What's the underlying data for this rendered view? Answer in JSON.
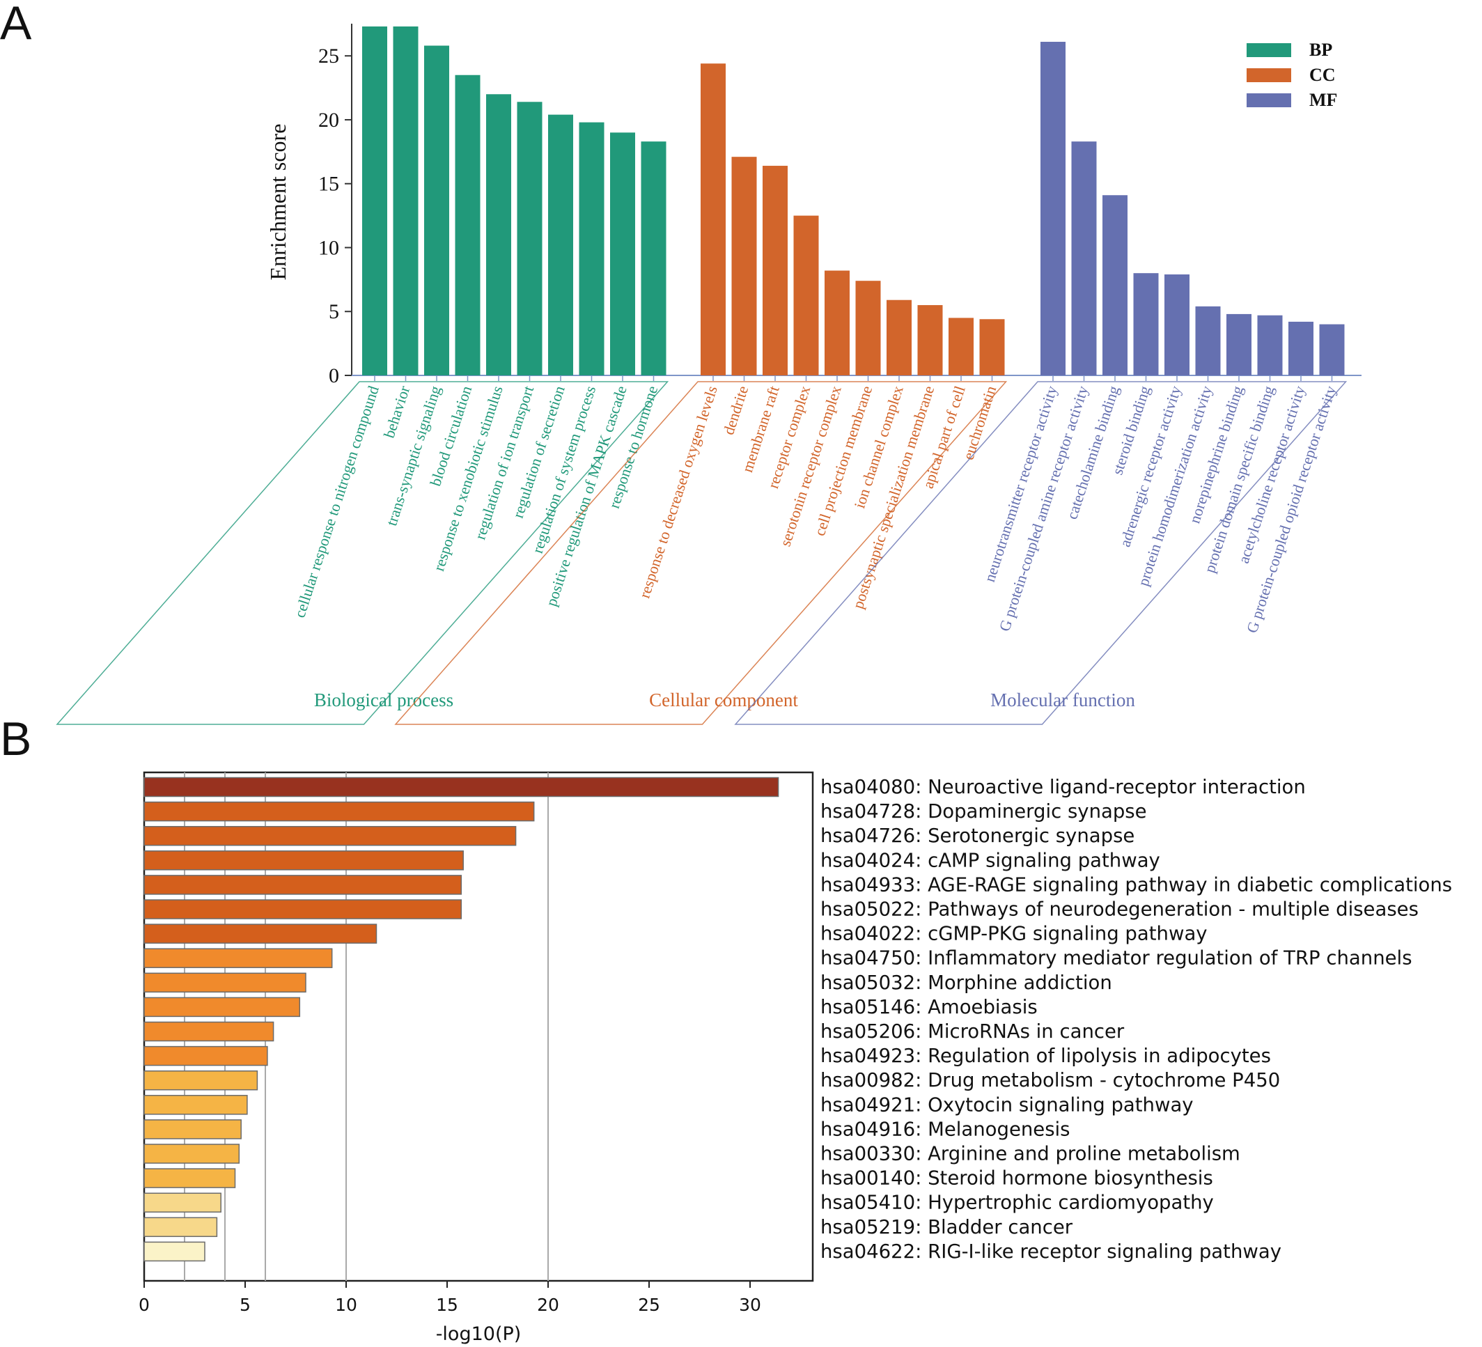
{
  "panel_a_label": "A",
  "panel_b_label": "B",
  "chart_data": [
    {
      "type": "bar",
      "ylabel": "Enrichment score",
      "ylim": [
        0,
        27.3
      ],
      "yticks": [
        0,
        5,
        10,
        15,
        20,
        25
      ],
      "legend_position": "top-right",
      "groups": [
        {
          "name": "BP",
          "title": "Biological process",
          "color": "#21997a",
          "categories": [
            "cellular response to nitrogen compound",
            "behavior",
            "trans-synaptic signaling",
            "blood circulation",
            "response to xenobiotic stimulus",
            "regulation of ion transport",
            "regulation of secretion",
            "regulation of system process",
            "positive regulation of MAPK cascade",
            "response to hormone"
          ],
          "values": [
            27.3,
            27.3,
            25.8,
            23.5,
            22.0,
            21.4,
            20.4,
            19.8,
            19.0,
            18.3
          ]
        },
        {
          "name": "CC",
          "title": "Cellular component",
          "color": "#d2652b",
          "categories": [
            "response to decreased oxygen levels",
            "dendrite",
            "membrane raft",
            "receptor complex",
            "serotonin receptor complex",
            "cell projection membrane",
            "ion channel complex",
            "postsynaptic specialization membrane",
            "apical part of cell",
            "euchromatin"
          ],
          "values": [
            24.4,
            17.1,
            16.4,
            12.5,
            8.2,
            7.4,
            5.9,
            5.5,
            4.5,
            4.4
          ]
        },
        {
          "name": "MF",
          "title": "Molecular function",
          "color": "#6570b0",
          "categories": [
            "neurotransmitter receptor activity",
            "G protein-coupled amine receptor activity",
            "catecholamine binding",
            "steroid binding",
            "adrenergic receptor activity",
            "protein homodimerization activity",
            "norepinephrine binding",
            "protein domain specific binding",
            "acetylcholine receptor activity",
            "G protein-coupled opioid receptor activity"
          ],
          "values": [
            26.1,
            18.3,
            14.1,
            8.0,
            7.9,
            5.4,
            4.8,
            4.7,
            4.2,
            4.0
          ]
        }
      ]
    },
    {
      "type": "bar",
      "orientation": "horizontal",
      "xlabel": "-log10(P)",
      "xlim": [
        0,
        33
      ],
      "xticks": [
        0,
        5,
        10,
        15,
        20,
        25,
        30
      ],
      "gridlines": [
        2,
        4,
        6,
        10,
        20
      ],
      "categories": [
        "hsa04080: Neuroactive ligand-receptor interaction",
        "hsa04728: Dopaminergic synapse",
        "hsa04726: Serotonergic synapse",
        "hsa04024: cAMP signaling pathway",
        "hsa04933: AGE-RAGE signaling pathway in diabetic complications",
        "hsa05022: Pathways of neurodegeneration - multiple diseases",
        "hsa04022: cGMP-PKG signaling pathway",
        "hsa04750: Inflammatory mediator regulation of TRP channels",
        "hsa05032: Morphine addiction",
        "hsa05146: Amoebiasis",
        "hsa05206: MicroRNAs in cancer",
        "hsa04923: Regulation of lipolysis in adipocytes",
        "hsa00982: Drug metabolism - cytochrome P450",
        "hsa04921: Oxytocin signaling pathway",
        "hsa04916: Melanogenesis",
        "hsa00330: Arginine and proline metabolism",
        "hsa00140: Steroid hormone biosynthesis",
        "hsa05410: Hypertrophic cardiomyopathy",
        "hsa05219: Bladder cancer",
        "hsa04622: RIG-I-like receptor signaling pathway"
      ],
      "values": [
        31.4,
        19.3,
        18.4,
        15.8,
        15.7,
        15.7,
        11.5,
        9.3,
        8.0,
        7.7,
        6.4,
        6.1,
        5.6,
        5.1,
        4.8,
        4.7,
        4.5,
        3.8,
        3.6,
        3.0
      ],
      "colors": [
        "#98321f",
        "#d45f1c",
        "#d45f1c",
        "#d45f1c",
        "#d45f1c",
        "#d45f1c",
        "#d45f1c",
        "#f08a2c",
        "#f08a2c",
        "#f08a2c",
        "#f08a2c",
        "#f08a2c",
        "#f5b445",
        "#f5b445",
        "#f5b445",
        "#f5b445",
        "#f5b445",
        "#f7d88a",
        "#f7d88a",
        "#fbf3c8"
      ]
    }
  ]
}
